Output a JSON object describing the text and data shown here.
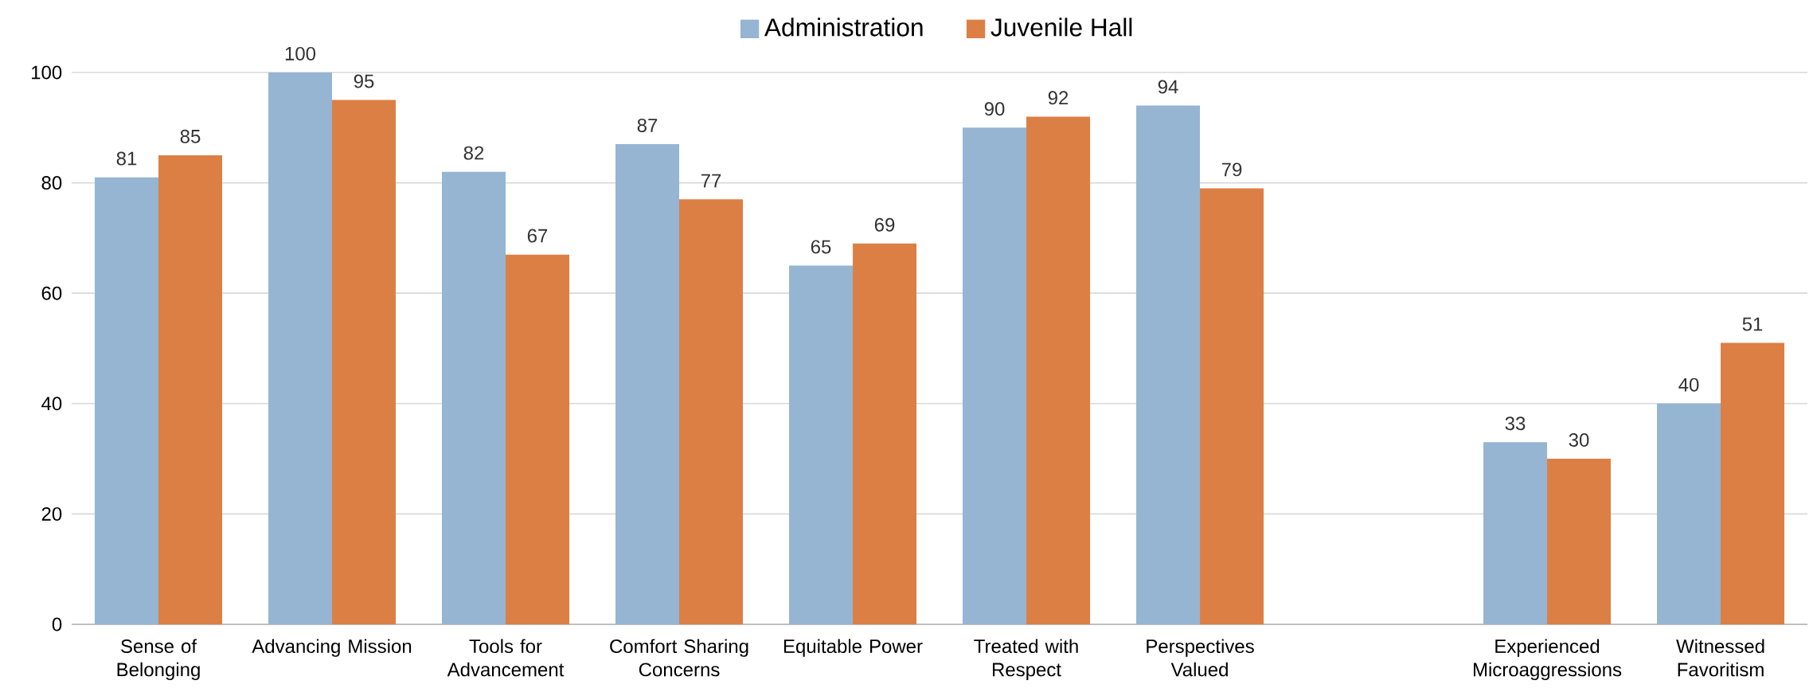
{
  "chart_data": {
    "type": "bar",
    "categories": [
      "Sense of Belonging",
      "Advancing Mission",
      "Tools for Advancement",
      "Comfort Sharing Concerns",
      "Equitable Power",
      "Treated with Respect",
      "Perspectives Valued",
      null,
      "Experienced Microaggressions",
      "Witnessed Favoritism"
    ],
    "series": [
      {
        "name": "Administration",
        "color": "#95b5d3",
        "values": [
          81,
          100,
          82,
          87,
          65,
          90,
          94,
          null,
          33,
          40
        ]
      },
      {
        "name": "Juvenile Hall",
        "color": "#dc7f45",
        "values": [
          85,
          95,
          67,
          77,
          69,
          92,
          79,
          null,
          30,
          51
        ]
      }
    ],
    "ylim": [
      0,
      100
    ],
    "yticks": [
      0,
      20,
      40,
      60,
      80,
      100
    ],
    "grid": "y",
    "legend": "top",
    "data_labels": true
  }
}
